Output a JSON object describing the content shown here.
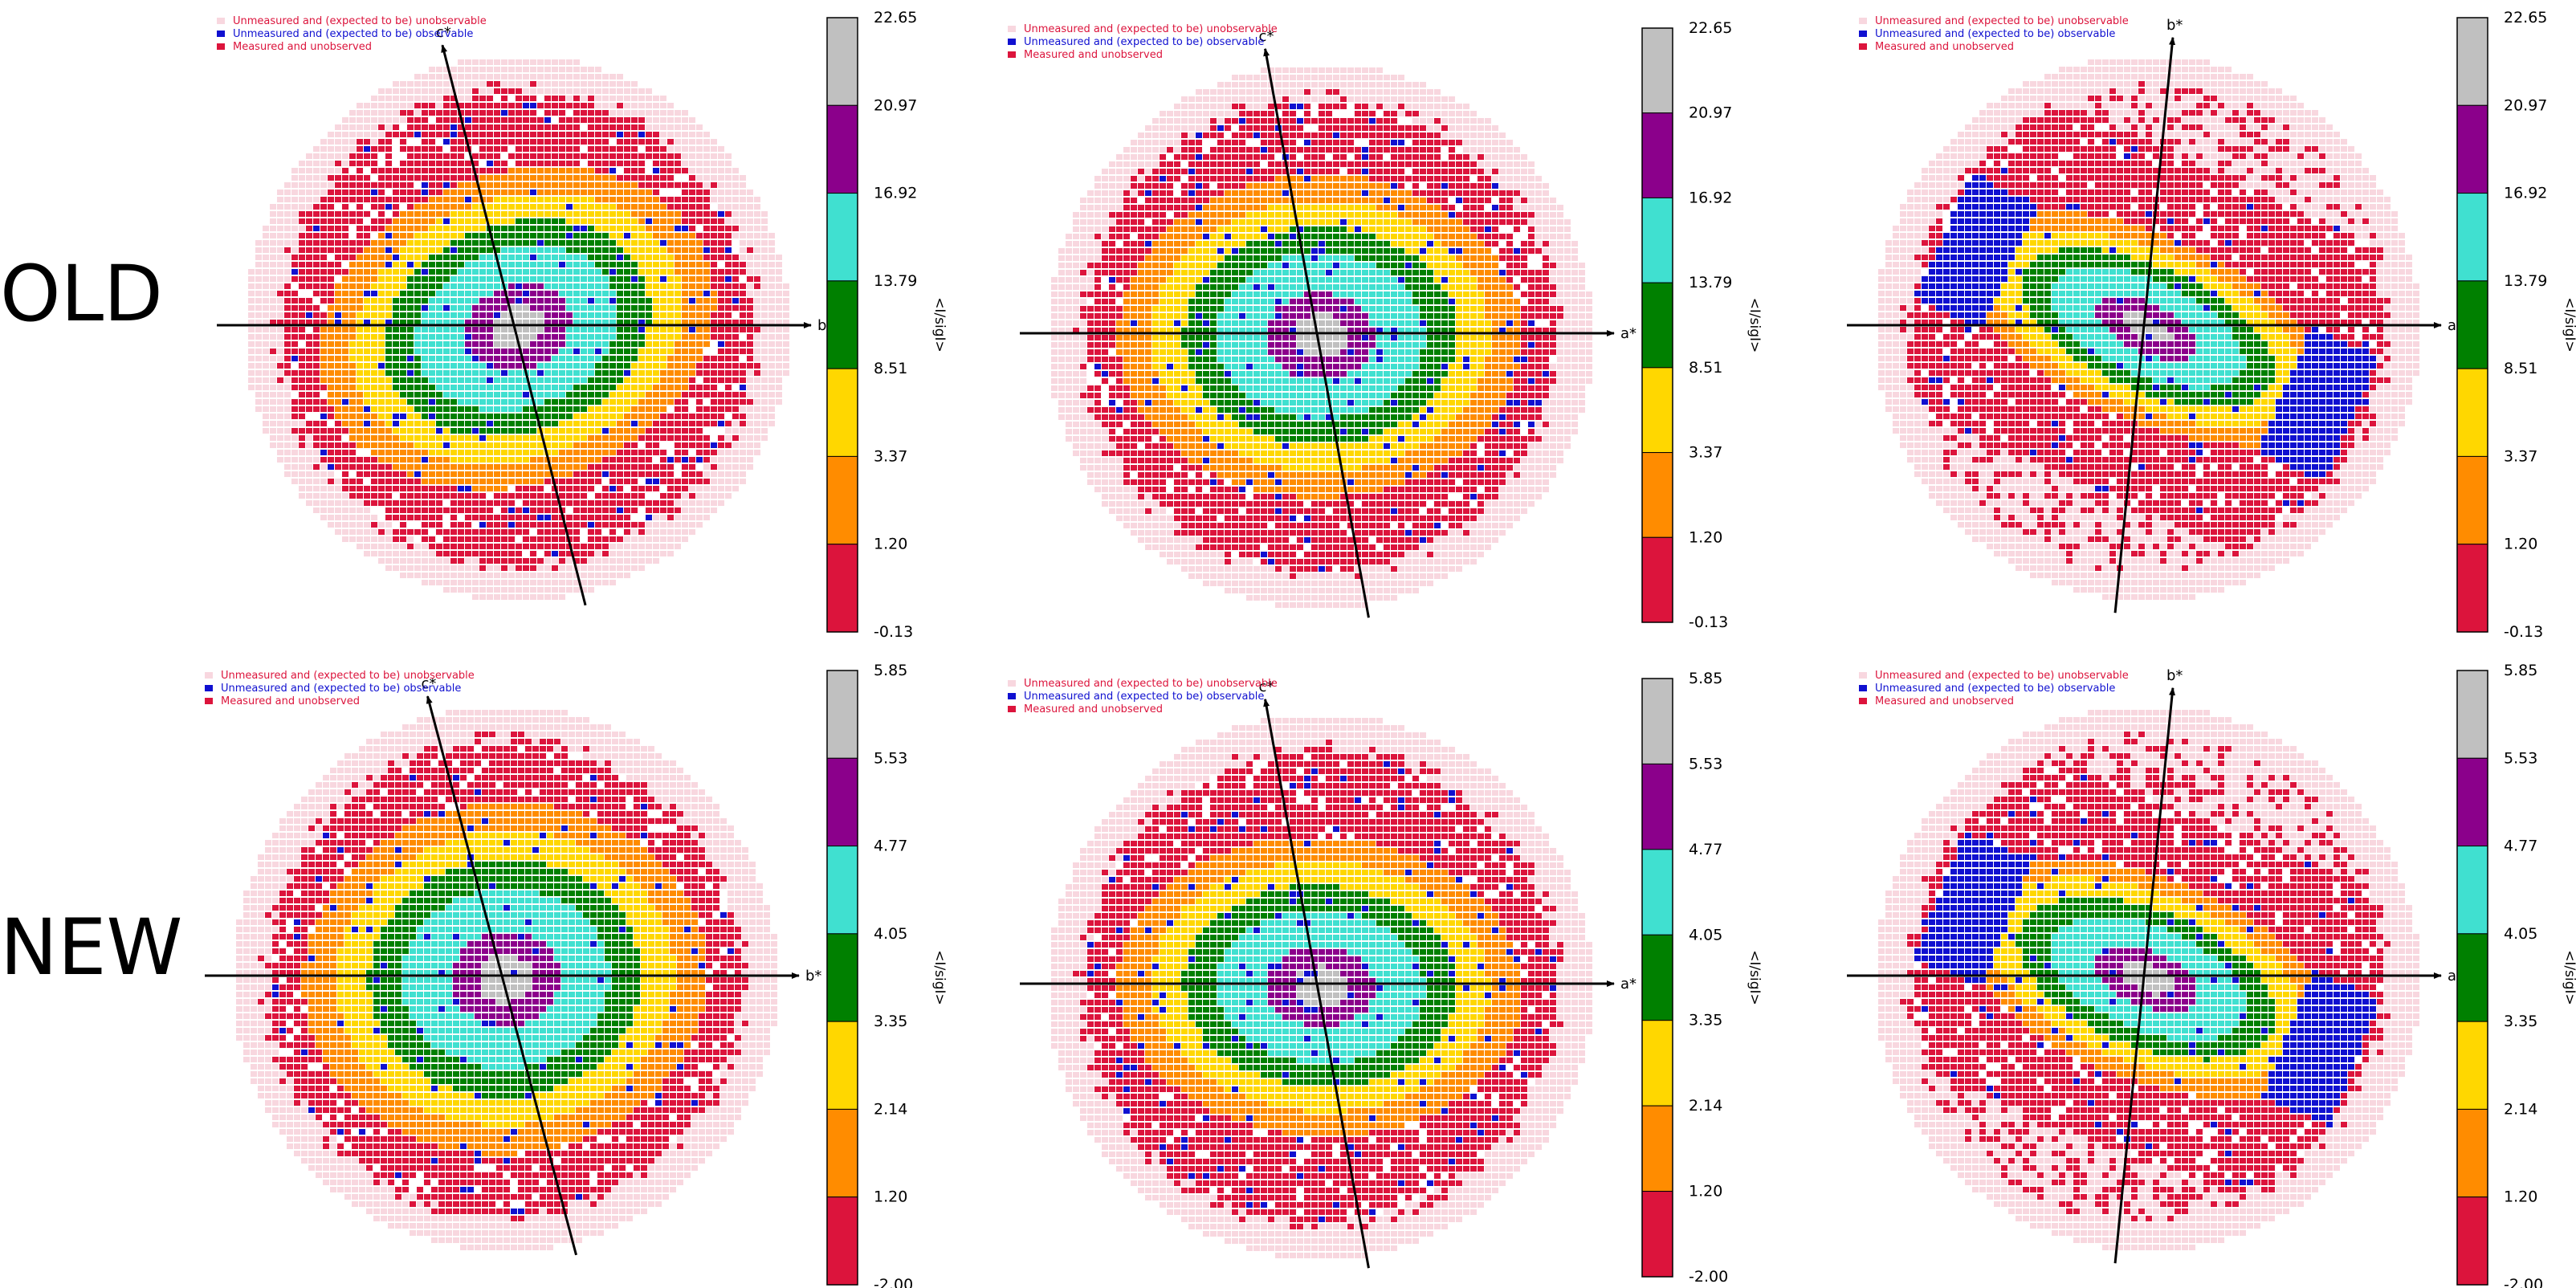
{
  "rows": [
    {
      "label": "OLD",
      "colorbar_ticks": [
        "22.65",
        "20.97",
        "16.92",
        "13.79",
        "8.51",
        "3.37",
        "1.20",
        "-0.13"
      ]
    },
    {
      "label": "NEW",
      "colorbar_ticks": [
        "5.85",
        "5.53",
        "4.77",
        "4.05",
        "3.35",
        "2.14",
        "1.20",
        "-2.00"
      ]
    }
  ],
  "colorbar_label": "<I/sigI>",
  "legend": [
    {
      "text": "Unmeasured and (expected to be) unobservable",
      "color": "#f8d7df"
    },
    {
      "text": "Unmeasured and (expected to be) observable",
      "color": "#1010d0"
    },
    {
      "text": "Measured and unobserved",
      "color": "#dc143c"
    }
  ],
  "bin_colors": [
    "#dc143c",
    "#ff8c00",
    "#ffd700",
    "#008000",
    "#40e0d0",
    "#8b008b",
    "#c0c0c0"
  ],
  "panels": [
    {
      "h_axis": "b*",
      "v_axis": "c*"
    },
    {
      "h_axis": "a*",
      "v_axis": "c*"
    },
    {
      "h_axis": "a*",
      "v_axis": "b*"
    },
    {
      "h_axis": "b*",
      "v_axis": "c*"
    },
    {
      "h_axis": "a*",
      "v_axis": "c*"
    },
    {
      "h_axis": "a*",
      "v_axis": "b*"
    }
  ]
}
